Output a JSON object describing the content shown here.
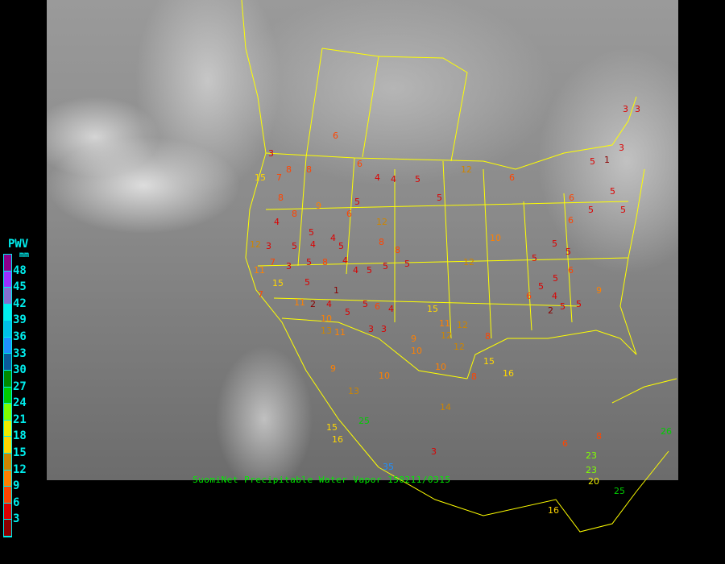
{
  "caption": "SuomiNet Precipitable Water Vapor 150211/0315",
  "legend": {
    "title": "PWV",
    "unit": "mm",
    "ticks": [
      "48",
      "45",
      "42",
      "39",
      "36",
      "33",
      "30",
      "27",
      "24",
      "21",
      "18",
      "15",
      "12",
      "9",
      "6",
      "3"
    ],
    "colors": [
      "#8b008b",
      "#9b30ff",
      "#8470d0",
      "#00eeee",
      "#00bfe8",
      "#1e90ff",
      "#0a5a9a",
      "#008b00",
      "#00cd00",
      "#7fff00",
      "#eeee00",
      "#ffd700",
      "#cd8500",
      "#ff8000",
      "#ff4500",
      "#dd0000",
      "#8b0000"
    ]
  },
  "boundary_color": "#ffff00",
  "stations": [
    "6",
    "3",
    "8",
    "6",
    "4",
    "4",
    "5",
    "8",
    "12",
    "6",
    "15",
    "7",
    "8",
    "5",
    "6",
    "12",
    "8",
    "9",
    "5",
    "4",
    "5",
    "4",
    "3",
    "5",
    "4",
    "5",
    "12",
    "7",
    "3",
    "11",
    "5",
    "8",
    "4",
    "4",
    "5",
    "5",
    "11",
    "15",
    "7",
    "5",
    "2",
    "4",
    "1",
    "5",
    "5",
    "6",
    "4",
    "10",
    "13",
    "3",
    "3",
    "11",
    "12",
    "10",
    "14",
    "9",
    "10",
    "12",
    "8",
    "15",
    "3",
    "1",
    "5",
    "3",
    "3",
    "5",
    "6",
    "5",
    "5",
    "6",
    "5",
    "5",
    "5",
    "6",
    "5",
    "9",
    "5",
    "6",
    "5",
    "4",
    "2",
    "5",
    "15",
    "11",
    "10",
    "9",
    "13",
    "15",
    "12",
    "16",
    "16",
    "25",
    "26",
    "23",
    "23",
    "20",
    "25",
    "16",
    "35",
    "6",
    "8",
    "3",
    "12",
    "8",
    "8",
    "10",
    "5",
    "8"
  ]
}
